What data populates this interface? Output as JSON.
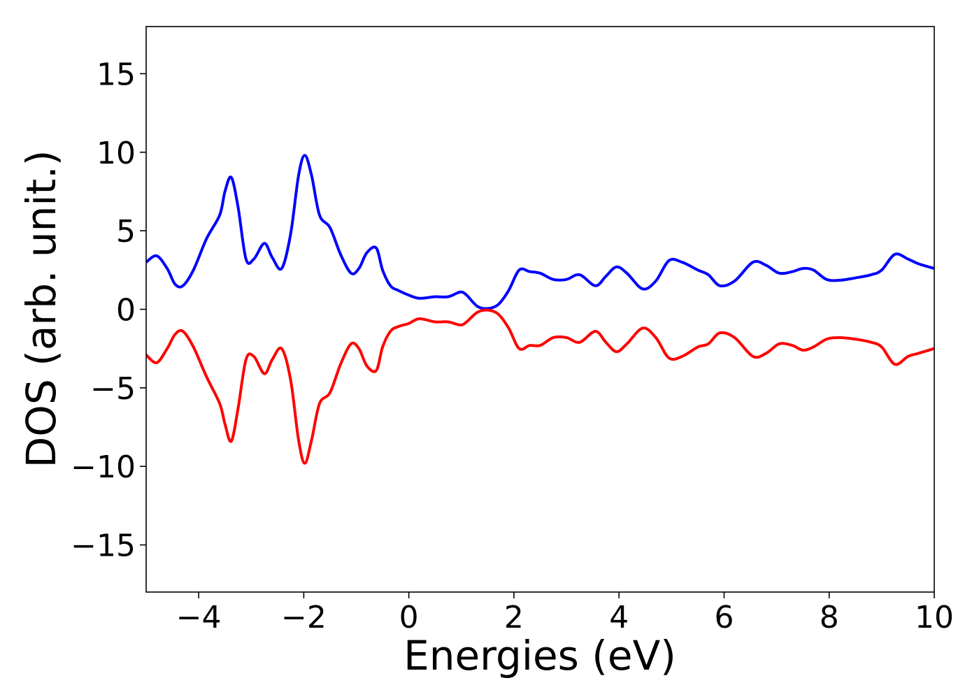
{
  "chart_data": {
    "type": "line",
    "title": "",
    "xlabel": "Energies (eV)",
    "ylabel": "DOS (arb. unit.)",
    "xlim": [
      -5,
      10
    ],
    "ylim": [
      -18,
      18
    ],
    "xticks": [
      -4,
      -2,
      0,
      2,
      4,
      6,
      8,
      10
    ],
    "yticks": [
      -15,
      -10,
      -5,
      0,
      5,
      10,
      15
    ],
    "xtick_labels": [
      "−4",
      "−2",
      "0",
      "2",
      "4",
      "6",
      "8",
      "10"
    ],
    "ytick_labels": [
      "−15",
      "−10",
      "−5",
      "0",
      "5",
      "10",
      "15"
    ],
    "grid": false,
    "legend": "none",
    "series": [
      {
        "color": "#0000ff",
        "x": [
          -5.0,
          -4.8,
          -4.6,
          -4.45,
          -4.3,
          -4.1,
          -3.85,
          -3.6,
          -3.5,
          -3.38,
          -3.25,
          -3.1,
          -2.95,
          -2.75,
          -2.6,
          -2.42,
          -2.25,
          -2.1,
          -1.98,
          -1.85,
          -1.7,
          -1.5,
          -1.3,
          -1.1,
          -0.95,
          -0.8,
          -0.62,
          -0.5,
          -0.35,
          -0.2,
          0.0,
          0.2,
          0.5,
          0.75,
          0.98,
          1.1,
          1.3,
          1.5,
          1.7,
          1.9,
          2.1,
          2.3,
          2.5,
          2.75,
          3.0,
          3.25,
          3.55,
          3.75,
          3.95,
          4.15,
          4.45,
          4.7,
          4.95,
          5.2,
          5.5,
          5.7,
          5.92,
          6.2,
          6.55,
          6.8,
          7.05,
          7.3,
          7.5,
          7.7,
          7.95,
          8.2,
          8.5,
          8.8,
          9.0,
          9.25,
          9.5,
          9.7,
          10.0
        ],
        "y": [
          3.0,
          3.4,
          2.6,
          1.6,
          1.5,
          2.5,
          4.5,
          6.0,
          7.5,
          8.4,
          6.5,
          3.2,
          3.2,
          4.2,
          3.3,
          2.6,
          4.8,
          8.5,
          9.8,
          8.5,
          6.0,
          5.2,
          3.5,
          2.3,
          2.6,
          3.6,
          3.9,
          2.5,
          1.5,
          1.2,
          0.9,
          0.7,
          0.8,
          0.8,
          1.1,
          0.9,
          0.2,
          0.05,
          0.3,
          1.2,
          2.5,
          2.4,
          2.3,
          1.9,
          1.9,
          2.2,
          1.5,
          2.1,
          2.7,
          2.3,
          1.3,
          1.8,
          3.1,
          3.0,
          2.5,
          2.2,
          1.5,
          1.8,
          3.0,
          2.8,
          2.3,
          2.4,
          2.6,
          2.5,
          1.9,
          1.85,
          2.0,
          2.2,
          2.5,
          3.5,
          3.2,
          2.9,
          2.6
        ]
      },
      {
        "color": "#ff0000",
        "x": [
          -5.0,
          -4.8,
          -4.6,
          -4.45,
          -4.3,
          -4.1,
          -3.85,
          -3.6,
          -3.5,
          -3.38,
          -3.25,
          -3.1,
          -2.95,
          -2.75,
          -2.6,
          -2.42,
          -2.25,
          -2.1,
          -1.98,
          -1.85,
          -1.7,
          -1.5,
          -1.3,
          -1.1,
          -0.95,
          -0.8,
          -0.62,
          -0.5,
          -0.35,
          -0.2,
          0.0,
          0.2,
          0.5,
          0.75,
          0.98,
          1.1,
          1.3,
          1.5,
          1.7,
          1.9,
          2.1,
          2.3,
          2.5,
          2.75,
          3.0,
          3.25,
          3.55,
          3.75,
          3.95,
          4.15,
          4.45,
          4.7,
          4.95,
          5.2,
          5.5,
          5.7,
          5.92,
          6.2,
          6.55,
          6.8,
          7.05,
          7.3,
          7.5,
          7.7,
          7.95,
          8.2,
          8.5,
          8.8,
          9.0,
          9.25,
          9.5,
          9.7,
          10.0
        ],
        "y": [
          -2.9,
          -3.4,
          -2.5,
          -1.6,
          -1.4,
          -2.4,
          -4.3,
          -6.0,
          -7.3,
          -8.4,
          -6.3,
          -3.2,
          -3.0,
          -4.1,
          -3.2,
          -2.5,
          -4.5,
          -8.3,
          -9.8,
          -8.3,
          -6.0,
          -5.3,
          -3.5,
          -2.2,
          -2.5,
          -3.6,
          -3.9,
          -2.4,
          -1.4,
          -1.1,
          -0.9,
          -0.6,
          -0.8,
          -0.8,
          -1.0,
          -0.8,
          -0.2,
          -0.05,
          -0.3,
          -1.2,
          -2.5,
          -2.3,
          -2.3,
          -1.8,
          -1.8,
          -2.1,
          -1.4,
          -2.1,
          -2.7,
          -2.2,
          -1.2,
          -1.8,
          -3.1,
          -3.0,
          -2.4,
          -2.2,
          -1.5,
          -1.8,
          -3.0,
          -2.8,
          -2.2,
          -2.3,
          -2.6,
          -2.4,
          -1.9,
          -1.8,
          -1.9,
          -2.1,
          -2.4,
          -3.5,
          -3.0,
          -2.8,
          -2.5
        ]
      }
    ]
  }
}
